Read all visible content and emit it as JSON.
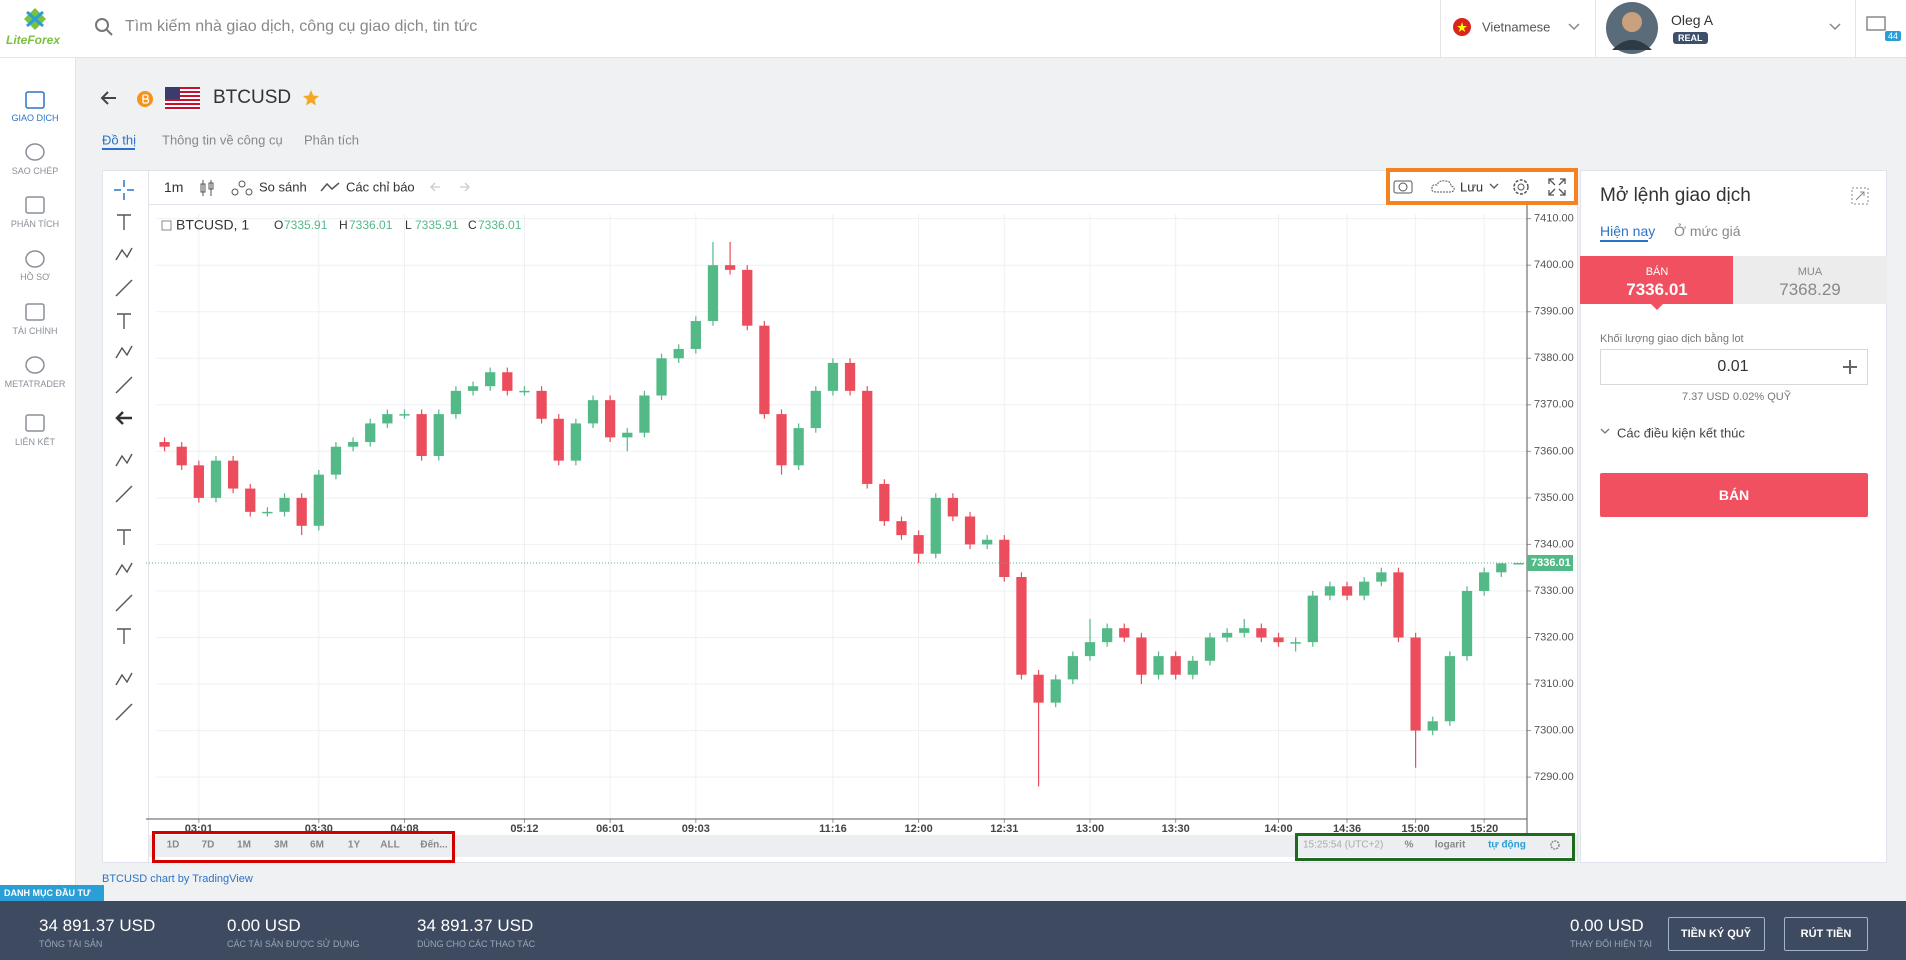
{
  "header": {
    "logo": "LiteForex",
    "search_placeholder": "Tìm kiếm nhà giao dịch, công cụ giao dịch, tin tức",
    "language": "Vietnamese",
    "user_name": "Oleg A",
    "account_type": "REAL",
    "notifications": "44"
  },
  "sidebar": [
    "GIAO DỊCH",
    "SAO CHÉP",
    "PHÂN TÍCH",
    "HỒ SƠ",
    "TÀI CHÍNH",
    "METATRADER",
    "LIÊN KẾT"
  ],
  "instrument": {
    "symbol": "BTCUSD"
  },
  "tabs": [
    "Đồ thị",
    "Thông tin về công cụ",
    "Phân tích"
  ],
  "toolbar": {
    "interval": "1m",
    "compare": "So sánh",
    "indicators": "Các chỉ báo",
    "save": "Lưu"
  },
  "chart_data": {
    "type": "candlestick",
    "ohlc_labels": [
      "O",
      "H",
      "L",
      "C"
    ],
    "ylim": [
      7281,
      7411
    ],
    "yticks": [
      {
        "value": 7290,
        "label": "7290.00"
      },
      {
        "value": 7300,
        "label": "7300.00"
      },
      {
        "value": 7310,
        "label": "7310.00"
      },
      {
        "value": 7320,
        "label": "7320.00"
      },
      {
        "value": 7330,
        "label": "7330.00"
      },
      {
        "value": 7340,
        "label": "7340.00"
      },
      {
        "value": 7350,
        "label": "7350.00"
      },
      {
        "value": 7360,
        "label": "7360.00"
      },
      {
        "value": 7370,
        "label": "7370.00"
      },
      {
        "value": 7380,
        "label": "7380.00"
      },
      {
        "value": 7390,
        "label": "7390.00"
      },
      {
        "value": 7400,
        "label": "7400.00"
      },
      {
        "value": 7410,
        "label": "7410.00"
      }
    ],
    "xticks": [
      {
        "value": 2,
        "label": "03:01"
      },
      {
        "value": 9,
        "label": "03:30"
      },
      {
        "value": 14,
        "label": "04:08"
      },
      {
        "value": 21,
        "label": "05:12"
      },
      {
        "value": 26,
        "label": "06:01"
      },
      {
        "value": 31,
        "label": "09:03"
      },
      {
        "value": 39,
        "label": "11:16"
      },
      {
        "value": 44,
        "label": "12:00"
      },
      {
        "value": 49,
        "label": "12:31"
      },
      {
        "value": 54,
        "label": "13:00"
      },
      {
        "value": 59,
        "label": "13:30"
      },
      {
        "value": 65,
        "label": "14:00"
      },
      {
        "value": 69,
        "label": "14:36"
      },
      {
        "value": 73,
        "label": "15:00"
      },
      {
        "value": 77,
        "label": "15:20"
      }
    ],
    "grid": true,
    "series": [
      {
        "name": "BTCUSD, 1",
        "up_color": "#53b987",
        "down_color": "#eb4d5c",
        "open": [
          7362,
          7361,
          7357,
          7350,
          7358,
          7352,
          7347,
          7347,
          7350,
          7344,
          7355,
          7361,
          7362,
          7366,
          7368,
          7368,
          7359,
          7368,
          7373,
          7374,
          7377,
          7373,
          7373,
          7367,
          7358,
          7366,
          7371,
          7363,
          7364,
          7372,
          7380,
          7382,
          7388,
          7400,
          7399,
          7387,
          7368,
          7357,
          7365,
          7373,
          7379,
          7373,
          7353,
          7345,
          7342,
          7338,
          7350,
          7346,
          7340,
          7341,
          7333,
          7312,
          7306,
          7311,
          7316,
          7319,
          7322,
          7320,
          7312,
          7316,
          7312,
          7315,
          7320,
          7321,
          7322,
          7320,
          7319,
          7319,
          7329,
          7331,
          7329,
          7332,
          7334,
          7320,
          7300,
          7302,
          7316,
          7330,
          7334,
          7335.91
        ],
        "high": [
          7363,
          7362,
          7358,
          7359,
          7359,
          7353,
          7348,
          7351,
          7351,
          7356,
          7362,
          7363,
          7367,
          7369,
          7369,
          7369,
          7369,
          7374,
          7375,
          7378,
          7378,
          7374,
          7374,
          7368,
          7367,
          7372,
          7372,
          7365,
          7373,
          7381,
          7383,
          7389,
          7405,
          7405,
          7400,
          7388,
          7369,
          7366,
          7374,
          7380,
          7380,
          7374,
          7354,
          7346,
          7343,
          7351,
          7351,
          7347,
          7342,
          7342,
          7334,
          7313,
          7312,
          7317,
          7324,
          7323,
          7323,
          7321,
          7317,
          7317,
          7316,
          7321,
          7322,
          7324,
          7323,
          7321,
          7320,
          7330,
          7332,
          7332,
          7333,
          7335,
          7335,
          7321,
          7303,
          7317,
          7331,
          7335,
          7336,
          7336.01
        ],
        "low": [
          7360,
          7356,
          7349,
          7349,
          7351,
          7346,
          7346,
          7346,
          7342,
          7343,
          7354,
          7360,
          7361,
          7365,
          7367,
          7358,
          7358,
          7367,
          7372,
          7373,
          7372,
          7372,
          7366,
          7357,
          7357,
          7365,
          7362,
          7360,
          7363,
          7371,
          7379,
          7381,
          7387,
          7398,
          7386,
          7367,
          7355,
          7356,
          7364,
          7372,
          7372,
          7352,
          7344,
          7341,
          7336,
          7337,
          7345,
          7339,
          7339,
          7332,
          7311,
          7288,
          7305,
          7310,
          7315,
          7318,
          7319,
          7310,
          7311,
          7311,
          7311,
          7314,
          7319,
          7320,
          7319,
          7318,
          7317,
          7318,
          7328,
          7328,
          7328,
          7331,
          7319,
          7292,
          7299,
          7301,
          7315,
          7329,
          7333,
          7335.91
        ],
        "close": [
          7361,
          7357,
          7350,
          7358,
          7352,
          7347,
          7347,
          7350,
          7344,
          7355,
          7361,
          7362,
          7366,
          7368,
          7368,
          7359,
          7368,
          7373,
          7374,
          7377,
          7373,
          7373,
          7367,
          7358,
          7366,
          7371,
          7363,
          7364,
          7372,
          7380,
          7382,
          7388,
          7400,
          7399,
          7387,
          7368,
          7357,
          7365,
          7373,
          7379,
          7373,
          7353,
          7345,
          7342,
          7338,
          7350,
          7346,
          7340,
          7341,
          7333,
          7312,
          7306,
          7311,
          7316,
          7319,
          7322,
          7320,
          7312,
          7316,
          7312,
          7315,
          7320,
          7321,
          7322,
          7320,
          7319,
          7319,
          7329,
          7331,
          7329,
          7332,
          7334,
          7320,
          7300,
          7302,
          7316,
          7330,
          7334,
          7335.91,
          7336.01
        ]
      }
    ]
  },
  "range_buttons": [
    "1D",
    "7D",
    "1M",
    "3M",
    "6M",
    "1Y",
    "ALL",
    "Đến..."
  ],
  "status_bar": {
    "time": "15:25:54 (UTC+2)",
    "percent": "%",
    "log": "logarit",
    "auto": "tự động"
  },
  "attribution": "BTCUSD chart by TradingView",
  "order_panel": {
    "title": "Mở lệnh giao dịch",
    "tabs": [
      "Hiện nay",
      "Ở mức giá"
    ],
    "sell_label": "BÁN",
    "sell_price": "7336.01",
    "buy_label": "MUA",
    "buy_price": "7368.29",
    "volume_label": "Khối lượng giao dịch bằng lot",
    "volume": "0.01",
    "margin": "7.37 USD",
    "fee": "0.02% QUỸ",
    "conditions": "Các điều kiện kết thúc",
    "submit": "BÁN"
  },
  "footer": {
    "portfolio_tab": "DANH MỤC ĐẦU TƯ",
    "stats": [
      {
        "value": "34 891.37 USD",
        "label": "TỔNG TÀI SẢN"
      },
      {
        "value": "0.00 USD",
        "label": "CÁC TÀI SẢN ĐƯỢC SỬ DỤNG"
      },
      {
        "value": "34 891.37 USD",
        "label": "DÙNG CHO CÁC THAO TÁC"
      },
      {
        "value": "0.00 USD",
        "label": "THAY ĐỔI HIỆN TẠI"
      }
    ],
    "deposit": "TIỀN KÝ QUỸ",
    "withdraw": "RÚT TIỀN"
  }
}
